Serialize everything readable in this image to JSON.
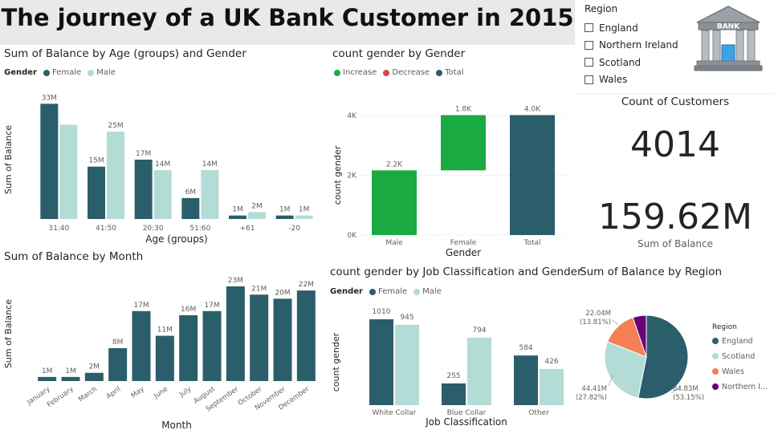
{
  "title": "The journey of a UK Bank Customer in 2015",
  "colors": {
    "female": "#2b5e6b",
    "male": "#b3dcd6",
    "increase": "#1aab40",
    "decrease": "#d64550",
    "total": "#2b5e6b",
    "england": "#2b5e6b",
    "scotland": "#b3dcd6",
    "wales": "#f47f54",
    "northern_ireland": "#6b007b"
  },
  "slicer": {
    "title": "Region",
    "items": [
      {
        "label": "England"
      },
      {
        "label": "Northern Ireland"
      },
      {
        "label": "Scotland"
      },
      {
        "label": "Wales"
      }
    ]
  },
  "bank_icon": {
    "icon": "bank-building-icon",
    "text": "BANK"
  },
  "cards": {
    "customers": {
      "label": "Count of Customers",
      "value": "4014"
    },
    "balance": {
      "label": "Sum of Balance",
      "value": "159.62M"
    }
  },
  "chart_data": [
    {
      "id": "age",
      "type": "bar",
      "title": "Sum of Balance by Age (groups) and Gender",
      "legend_title": "Gender",
      "xlabel": "Age (groups)",
      "ylabel": "Sum of Balance",
      "ylim": [
        0,
        34
      ],
      "categories": [
        "31:40",
        "41:50",
        "20:30",
        "51:60",
        "+61",
        "-20"
      ],
      "series": [
        {
          "name": "Female",
          "values": [
            33,
            15,
            17,
            6,
            1,
            1
          ],
          "labels": [
            "33M",
            "15M",
            "17M",
            "6M",
            "1M",
            "1M"
          ]
        },
        {
          "name": "Male",
          "values": [
            27,
            25,
            14,
            14,
            2,
            1
          ],
          "labels": [
            "",
            "25M",
            "14M",
            "14M",
            "2M",
            "1M"
          ]
        }
      ]
    },
    {
      "id": "waterfall",
      "type": "bar",
      "subtype": "waterfall",
      "title": "count gender by Gender",
      "legend": [
        "Increase",
        "Decrease",
        "Total"
      ],
      "xlabel": "Gender",
      "ylabel": "count gender",
      "ylim": [
        0,
        4000
      ],
      "yticks": [
        {
          "v": 0,
          "label": "0K"
        },
        {
          "v": 2000,
          "label": "2K"
        },
        {
          "v": 4000,
          "label": "4K"
        }
      ],
      "categories": [
        "Male",
        "Female",
        "Total"
      ],
      "values": [
        2165,
        1849,
        4014
      ],
      "kinds": [
        "increase",
        "increase",
        "total"
      ],
      "labels": [
        "2.2K",
        "1.8K",
        "4.0K"
      ]
    },
    {
      "id": "month",
      "type": "bar",
      "title": "Sum of Balance by Month",
      "xlabel": "Month",
      "ylabel": "Sum of Balance",
      "ylim": [
        0,
        23
      ],
      "categories": [
        "January",
        "February",
        "March",
        "April",
        "May",
        "June",
        "July",
        "August",
        "September",
        "October",
        "November",
        "December"
      ],
      "values": [
        1,
        1,
        2,
        8,
        17,
        11,
        16,
        17,
        23,
        21,
        20,
        22
      ],
      "labels": [
        "1M",
        "1M",
        "2M",
        "8M",
        "17M",
        "11M",
        "16M",
        "17M",
        "23M",
        "21M",
        "20M",
        "22M"
      ]
    },
    {
      "id": "job",
      "type": "bar",
      "title": "count gender by Job Classification and Gender",
      "legend_title": "Gender",
      "xlabel": "Job Classification",
      "ylabel": "count gender",
      "ylim": [
        0,
        1010
      ],
      "categories": [
        "White Collar",
        "Blue Collar",
        "Other"
      ],
      "series": [
        {
          "name": "Female",
          "values": [
            1010,
            255,
            584
          ],
          "labels": [
            "1010",
            "255",
            "584"
          ]
        },
        {
          "name": "Male",
          "values": [
            945,
            794,
            426
          ],
          "labels": [
            "945",
            "794",
            "426"
          ]
        }
      ]
    },
    {
      "id": "region",
      "type": "pie",
      "title": "Sum of Balance by Region",
      "legend_title": "Region",
      "categories": [
        "England",
        "Scotland",
        "Wales",
        "Northern I..."
      ],
      "values": [
        84.83,
        44.41,
        22.04,
        8.34
      ],
      "slice_labels": [
        {
          "value": "84.83M",
          "pct": "(53.15%)"
        },
        {
          "value": "44.41M",
          "pct": "(27.82%)"
        },
        {
          "value": "22.04M",
          "pct": "(13.81%)"
        }
      ]
    }
  ]
}
